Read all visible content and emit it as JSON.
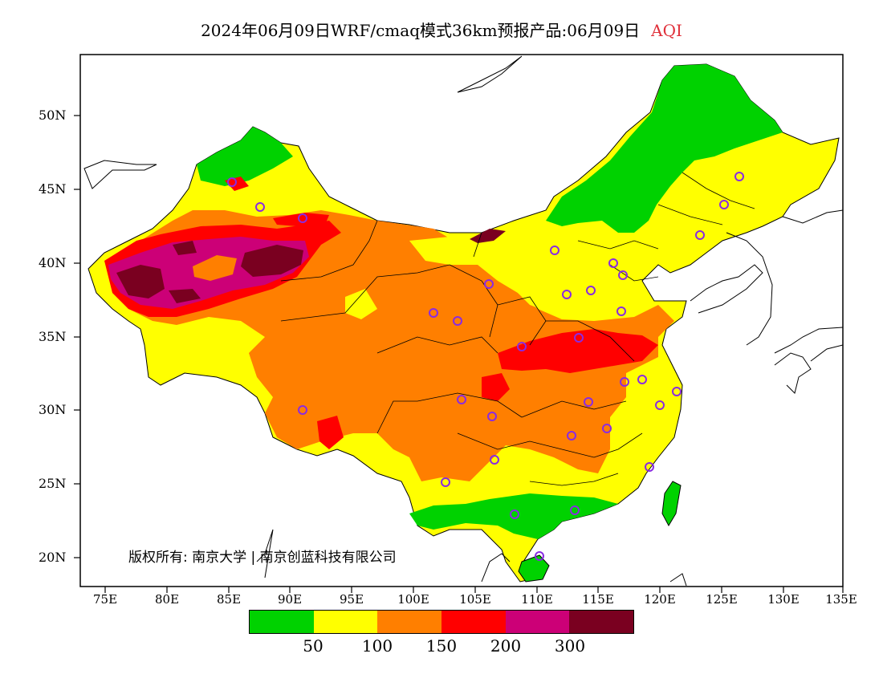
{
  "title": {
    "main": "2024年06月09日WRF/cmaq模式36km预报产品:06月09日",
    "variable": "AQI"
  },
  "y_axis": [
    "50N",
    "45N",
    "40N",
    "35N",
    "30N",
    "25N",
    "20N"
  ],
  "x_axis": [
    "75E",
    "80E",
    "85E",
    "90E",
    "95E",
    "100E",
    "105E",
    "110E",
    "115E",
    "120E",
    "125E",
    "130E",
    "135E"
  ],
  "legend": {
    "colors": [
      "#00d200",
      "#ffff00",
      "#ff7f00",
      "#ff0000",
      "#cc0077",
      "#7a0020"
    ],
    "labels": [
      "50",
      "100",
      "150",
      "200",
      "300"
    ]
  },
  "copyright": "版权所有: 南京大学 | 南京创蓝科技有限公司",
  "map": {
    "aqi_colors": {
      "good": "#00d200",
      "moderate": "#ffff00",
      "unhealthy_sensitive": "#ff7f00",
      "unhealthy": "#ff0000",
      "very_unhealthy": "#cc0077",
      "hazardous": "#7a0020"
    },
    "station_marker_color": "#8a2be2"
  }
}
